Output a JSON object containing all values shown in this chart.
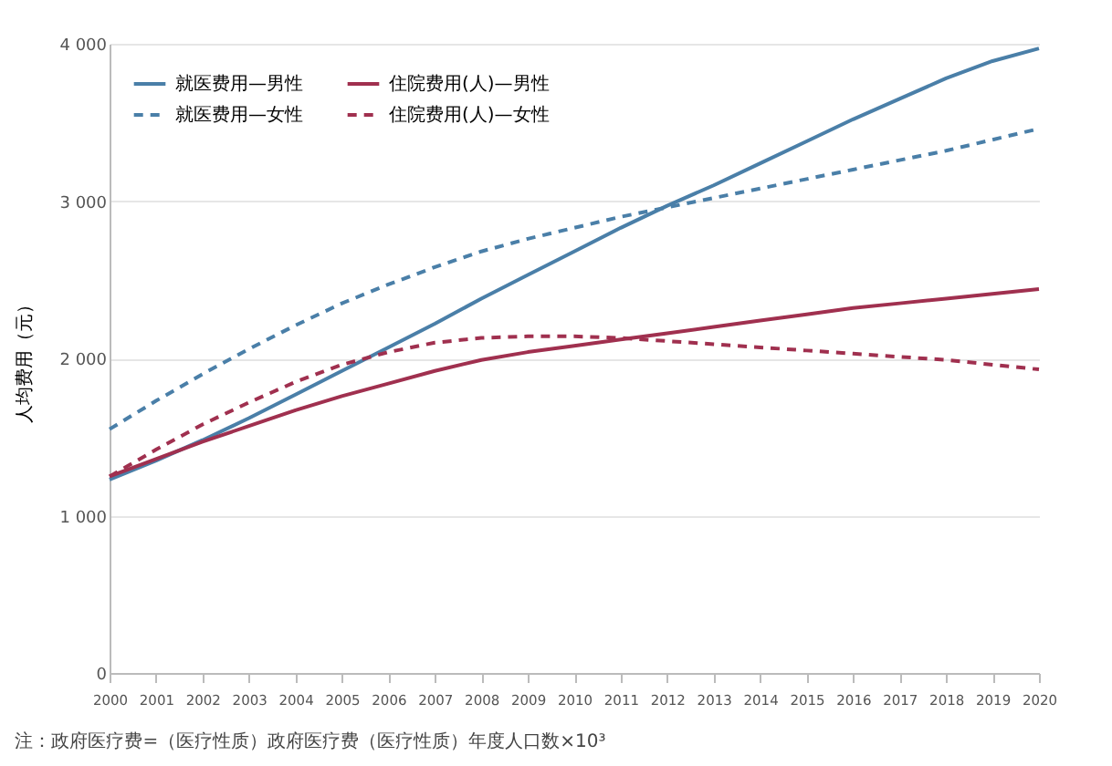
{
  "chart_data": {
    "type": "line",
    "ylabel": "人均费用（元）",
    "categories": [
      "2000",
      "2001",
      "2002",
      "2003",
      "2004",
      "2005",
      "2006",
      "2007",
      "2008",
      "2009",
      "2010",
      "2011",
      "2012",
      "2013",
      "2014",
      "2015",
      "2016",
      "2017",
      "2018",
      "2019",
      "2020"
    ],
    "series": [
      {
        "name": "就医费用—男性",
        "color": "#4a7fa8",
        "line_style": "solid",
        "values": [
          1230,
          1350,
          1480,
          1620,
          1770,
          1920,
          2070,
          2220,
          2380,
          2530,
          2680,
          2830,
          2970,
          3100,
          3240,
          3380,
          3520,
          3650,
          3780,
          3890,
          3970
        ]
      },
      {
        "name": "就医费用—女性",
        "color": "#4a7fa8",
        "line_style": "dashed",
        "values": [
          1550,
          1730,
          1900,
          2060,
          2210,
          2350,
          2470,
          2580,
          2680,
          2760,
          2830,
          2900,
          2960,
          3020,
          3080,
          3140,
          3200,
          3260,
          3320,
          3390,
          3460
        ]
      },
      {
        "name": "住院费用(人)—男性",
        "color": "#a0304f",
        "line_style": "solid",
        "values": [
          1250,
          1360,
          1470,
          1570,
          1670,
          1760,
          1840,
          1920,
          1990,
          2040,
          2080,
          2120,
          2160,
          2200,
          2240,
          2280,
          2320,
          2350,
          2380,
          2410,
          2440
        ]
      },
      {
        "name": "住院费用(人)—女性",
        "color": "#a0304f",
        "line_style": "dashed",
        "values": [
          1250,
          1420,
          1580,
          1720,
          1850,
          1960,
          2040,
          2100,
          2130,
          2140,
          2140,
          2130,
          2110,
          2090,
          2070,
          2050,
          2030,
          2010,
          1990,
          1960,
          1930
        ]
      }
    ],
    "ylim": [
      0,
      4000
    ],
    "yticks": [
      0,
      {
        "value": 1000,
        "label": "1 000"
      },
      {
        "value": 2000,
        "label": "2 000"
      },
      {
        "value": 3000,
        "label": "3 000"
      },
      {
        "value": 4000,
        "label": "4 000"
      }
    ],
    "grid": "y",
    "legend": "top left",
    "annotations": [
      "注：政府医疗费=（医疗性质）政府医疗费（医疗性质）年度人口数×10³"
    ]
  }
}
